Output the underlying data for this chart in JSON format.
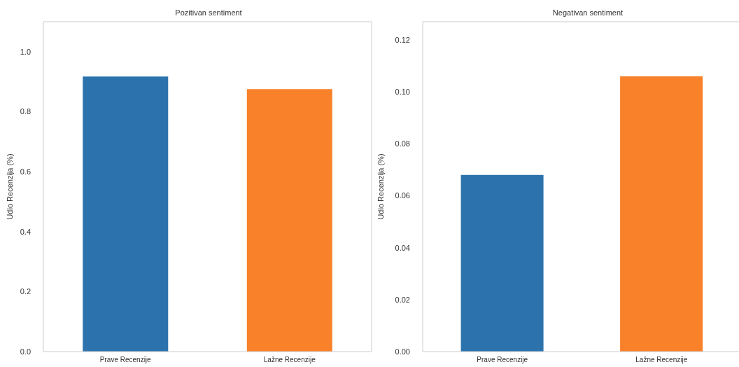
{
  "chart_data": [
    {
      "type": "bar",
      "title": "Pozitivan sentiment",
      "ylabel": "Udio Recenzija (%)",
      "categories": [
        "Prave Recenzije",
        "Lažne Recenzije"
      ],
      "values": [
        0.917,
        0.875
      ],
      "colors": [
        "#2c73ad",
        "#f8812a"
      ],
      "ylim": [
        0,
        1.1
      ],
      "yticks": [
        {
          "value": 0,
          "label": "0.0"
        },
        {
          "value": 0.2,
          "label": "0.2"
        },
        {
          "value": 0.4,
          "label": "0.4"
        },
        {
          "value": 0.6,
          "label": "0.6"
        },
        {
          "value": 0.8,
          "label": "0.8"
        },
        {
          "value": 1,
          "label": "1.0"
        }
      ],
      "grid": false
    },
    {
      "type": "bar",
      "title": "Negativan sentiment",
      "ylabel": "Udio Recenzija (%)",
      "categories": [
        "Prave Recenzije",
        "Lažne Recenzije"
      ],
      "values": [
        0.068,
        0.106
      ],
      "colors": [
        "#2c73ad",
        "#f8812a"
      ],
      "ylim": [
        0,
        0.127
      ],
      "yticks": [
        {
          "value": 0,
          "label": "0.00"
        },
        {
          "value": 0.02,
          "label": "0.02"
        },
        {
          "value": 0.04,
          "label": "0.04"
        },
        {
          "value": 0.06,
          "label": "0.06"
        },
        {
          "value": 0.08,
          "label": "0.08"
        },
        {
          "value": 0.1,
          "label": "0.10"
        },
        {
          "value": 0.12,
          "label": "0.12"
        }
      ],
      "grid": false
    }
  ]
}
